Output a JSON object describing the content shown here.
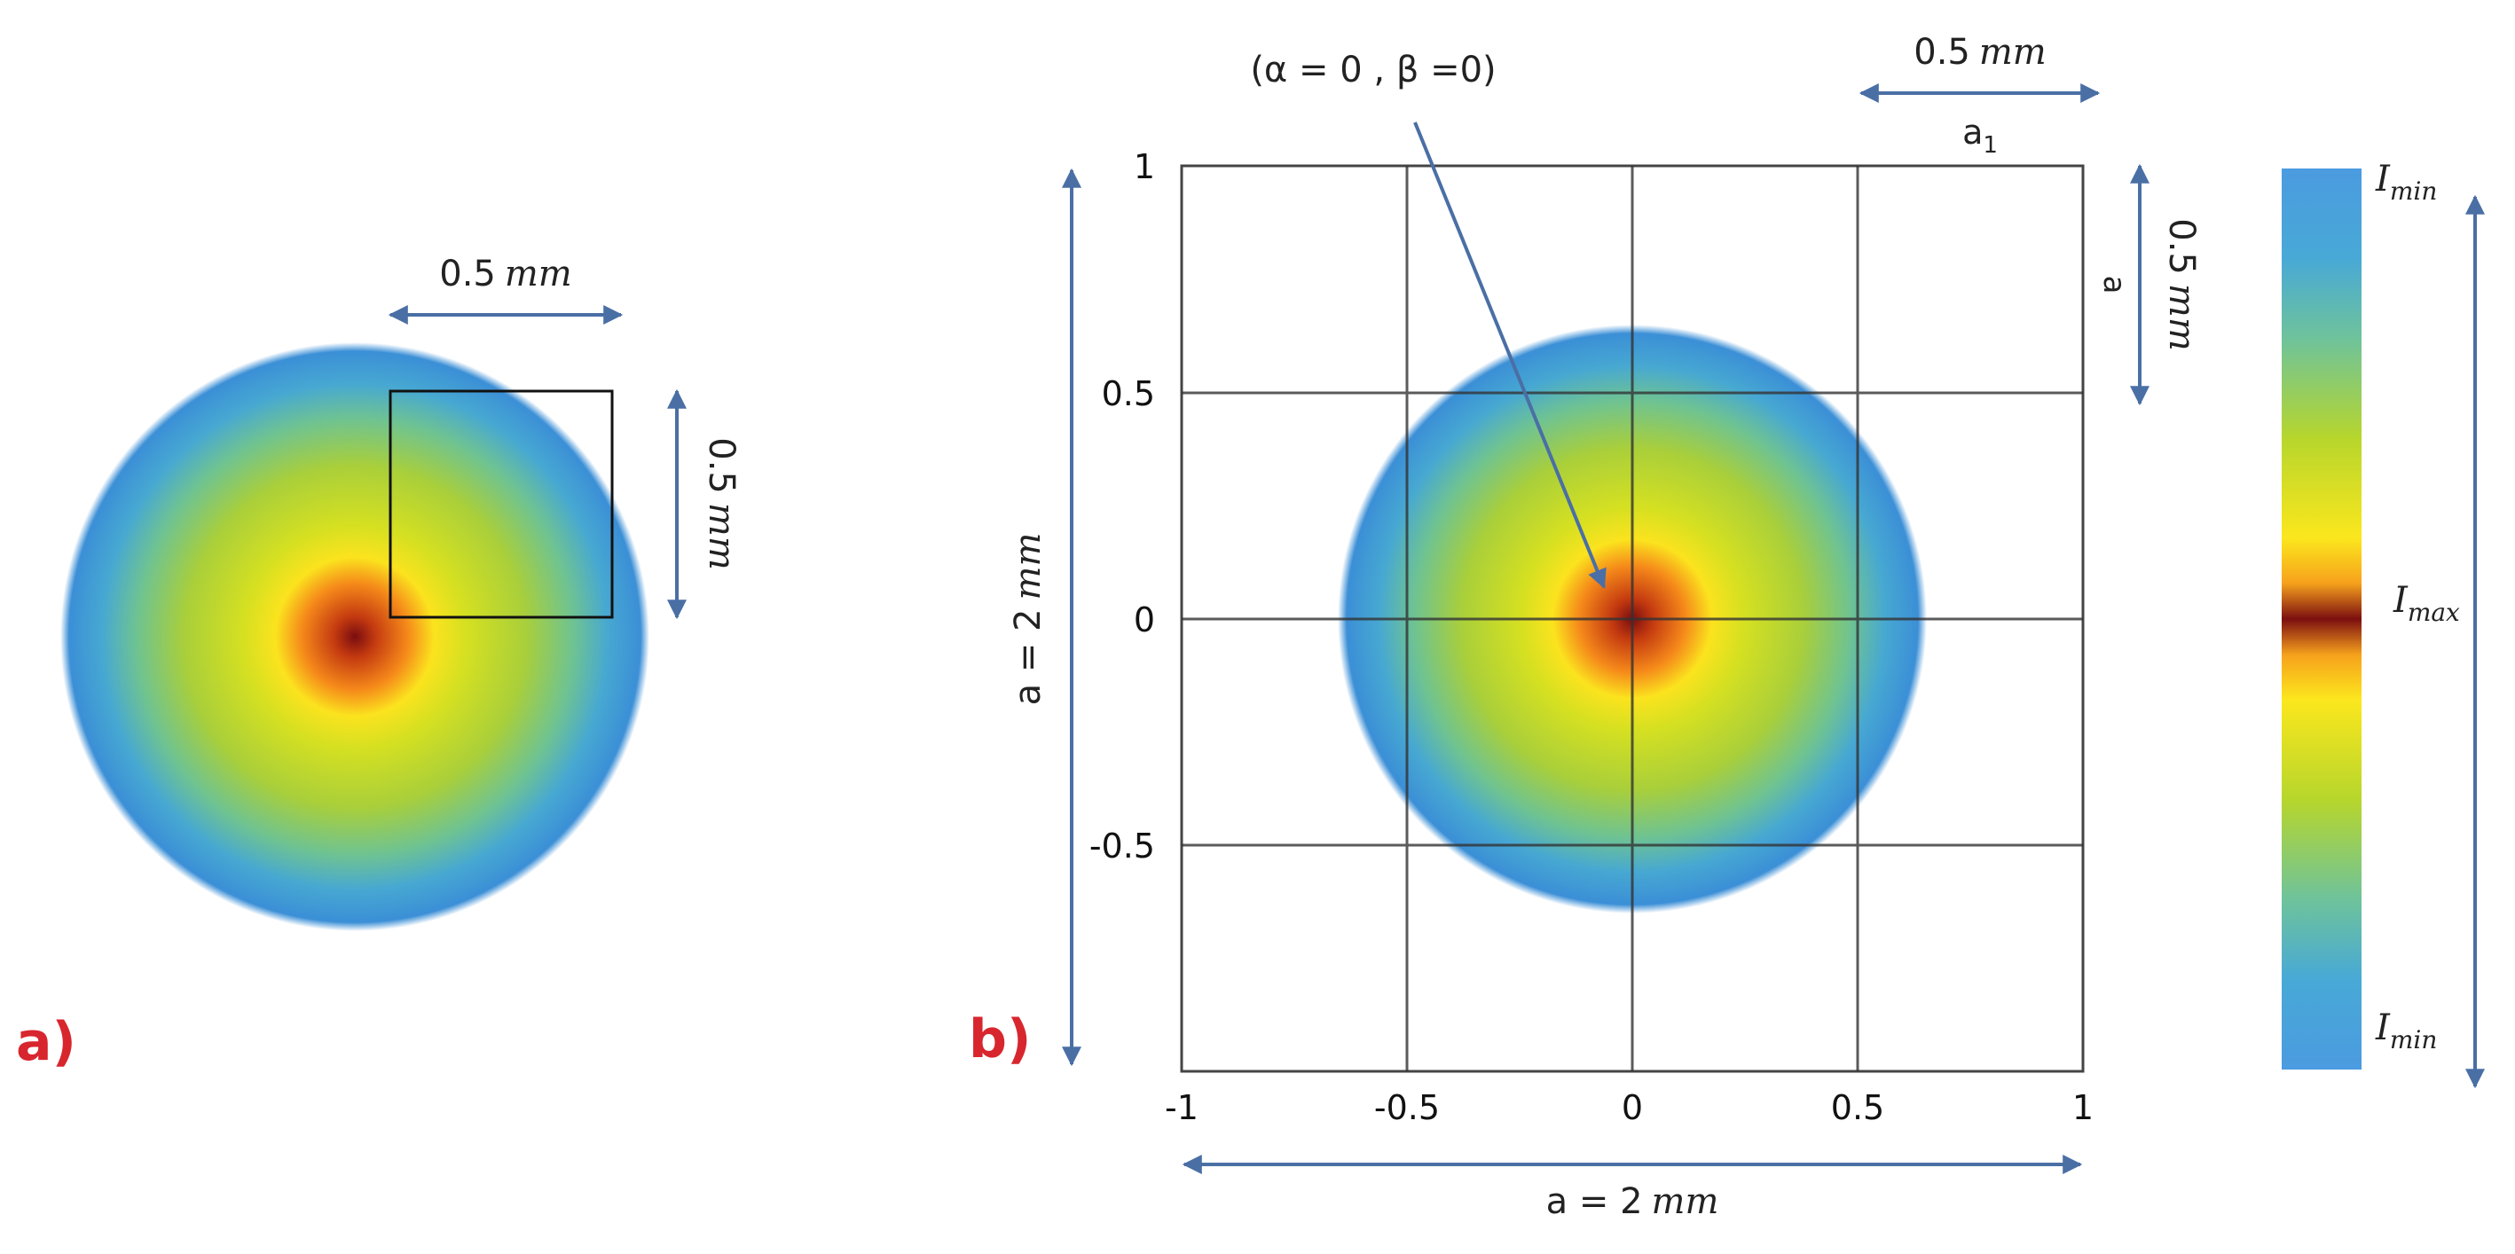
{
  "panel_a": {
    "label": "a)",
    "width_label_value": "0.5",
    "width_label_unit": "mm",
    "height_label_value": "0.5",
    "height_label_unit": "mm"
  },
  "panel_b": {
    "label": "b)",
    "origin_annotation": "(α  = 0 , β =0)",
    "top_right_width_value": "0.5",
    "top_right_width_unit": "mm",
    "top_right_width_symbol": "a",
    "top_right_width_subscript": "1",
    "right_height_value": "0.5",
    "right_height_unit": "mm",
    "right_height_symbol": "a",
    "left_height_label": "a = 2",
    "left_height_unit": "mm",
    "bottom_width_label": "a = 2",
    "bottom_width_unit": "mm",
    "x_ticks": [
      "-1",
      "-0.5",
      "0",
      "0.5",
      "1"
    ],
    "y_ticks": [
      "1",
      "0.5",
      "0",
      "-0.5"
    ]
  },
  "colorbar": {
    "top_label": "I",
    "top_sub": "min",
    "mid_label": "I",
    "mid_sub": "max",
    "bottom_label": "I",
    "bottom_sub": "min"
  },
  "colors": {
    "arrow": "#4a6fa5",
    "grid": "#333333",
    "label_red": "#d8262e"
  }
}
